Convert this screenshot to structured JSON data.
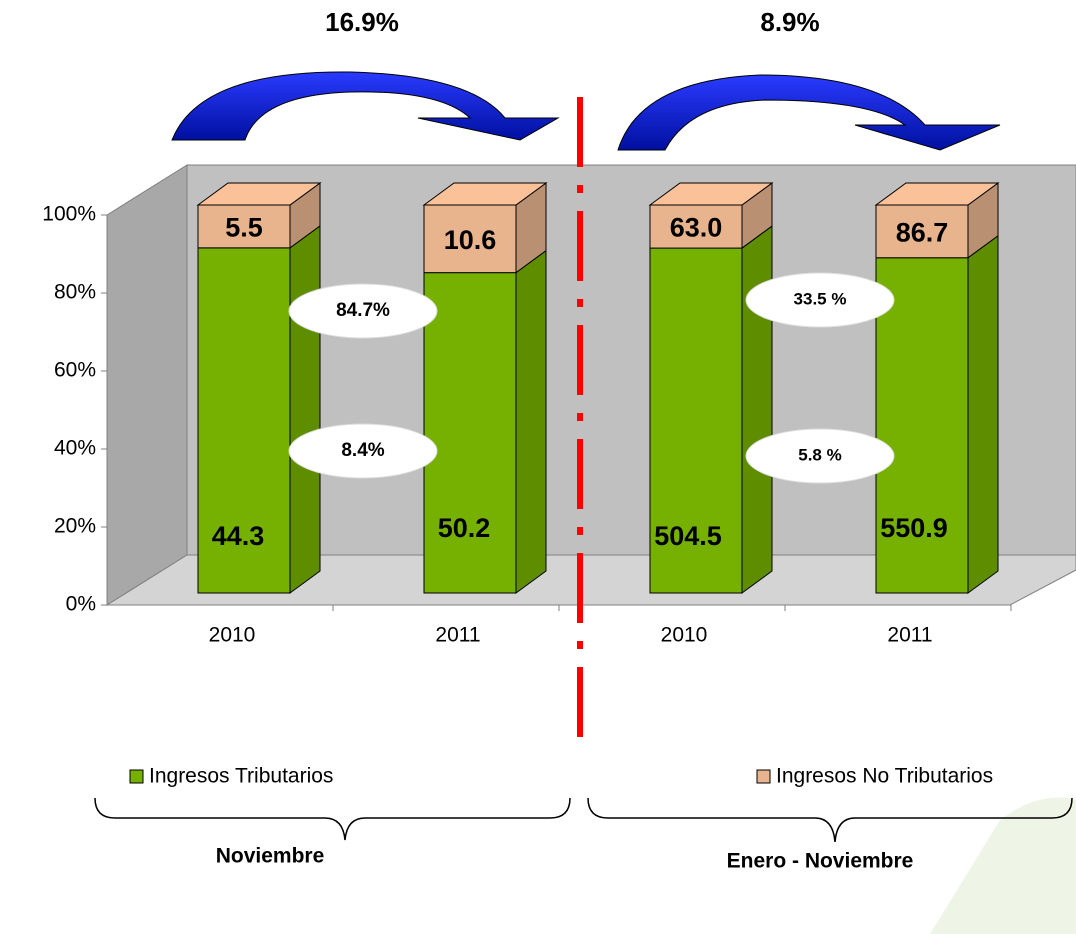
{
  "chart_data": {
    "type": "bar",
    "stacking": "percent",
    "categories": [
      "2010",
      "2011",
      "2010",
      "2011"
    ],
    "series": [
      {
        "name": "Ingresos Tributarios",
        "color": "#76b000",
        "values": [
          44.3,
          50.2,
          504.5,
          550.9
        ]
      },
      {
        "name": "Ingresos No Tributarios",
        "color": "#e8b48e",
        "values": [
          5.5,
          10.6,
          63,
          86.7
        ],
        "value_labels": [
          "5.5",
          "10.6",
          "63.0",
          "86.7"
        ]
      }
    ],
    "ylim": [
      0,
      100
    ],
    "yticks": [
      {
        "value": 0,
        "label": "0%"
      },
      {
        "value": 20,
        "label": "20%"
      },
      {
        "value": 40,
        "label": "40%"
      },
      {
        "value": 60,
        "label": "60%"
      },
      {
        "value": 80,
        "label": "80%"
      },
      {
        "value": 100,
        "label": "100%"
      }
    ],
    "annotations": [
      "16.9%",
      "8.9%",
      "84.7%",
      "8.4%",
      "33.5 %",
      "5.8 %"
    ],
    "groups": [
      "Noviembre",
      "Enero - Noviembre"
    ]
  }
}
